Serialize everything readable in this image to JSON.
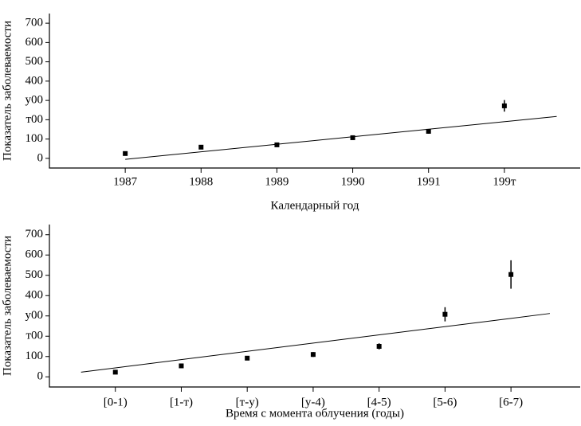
{
  "chart_data": [
    {
      "type": "scatter",
      "x": [
        1987,
        1988,
        1989,
        1990,
        1991,
        1992
      ],
      "values": [
        25,
        58,
        70,
        107,
        140,
        272
      ],
      "errors": [
        8,
        8,
        6,
        10,
        12,
        30
      ],
      "fit": {
        "x": [
          1987,
          1992.69
        ],
        "values": [
          -5,
          217
        ]
      },
      "xlim": [
        1986,
        1993
      ],
      "ylim": [
        -50,
        750
      ],
      "xticks": [
        1987,
        1988,
        1989,
        1990,
        1991,
        {
          "value": 1992,
          "label": "199т"
        }
      ],
      "yticks": [
        0,
        100,
        {
          "value": 200,
          "label": "т00"
        },
        {
          "value": 300,
          "label": "у00"
        },
        400,
        500,
        600,
        700
      ],
      "xlabel": "Календарный год",
      "ylabel": "Показатель заболеваемости",
      "color": "#000000"
    },
    {
      "type": "scatter",
      "categories": [
        "[0-1)",
        "[1-т)",
        "[т-у)",
        "[у-4)",
        "[4-5)",
        "[5-6)",
        "[6-7)"
      ],
      "values": [
        23,
        54,
        92,
        110,
        150,
        308,
        504
      ],
      "errors": [
        6,
        8,
        8,
        12,
        15,
        35,
        70
      ],
      "fit": {
        "x": [
          -0.52,
          6.59
        ],
        "values": [
          23,
          312
        ]
      },
      "ylim": [
        -50,
        750
      ],
      "yticks": [
        0,
        100,
        {
          "value": 200,
          "label": "т00"
        },
        {
          "value": 300,
          "label": "у00"
        },
        400,
        500,
        600,
        700
      ],
      "xlabel": "Время с момента облучения (годы)",
      "ylabel": "Показатель заболеваемости",
      "color": "#000000"
    }
  ]
}
